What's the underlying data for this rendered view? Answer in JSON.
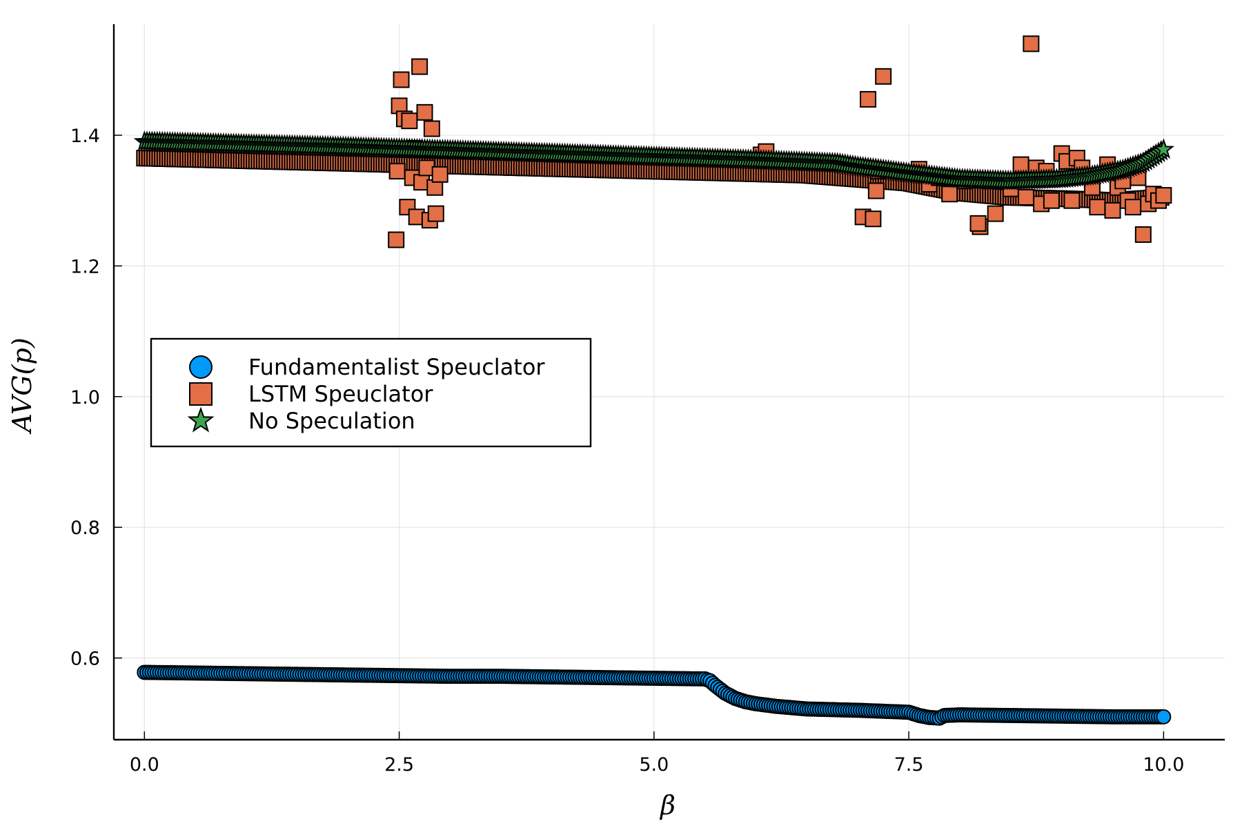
{
  "chart_data": {
    "type": "scatter",
    "xlabel": "β",
    "ylabel": "AVG(p)",
    "xlim": [
      -0.3,
      10.6
    ],
    "ylim": [
      0.475,
      1.57
    ],
    "xticks": [
      0.0,
      2.5,
      5.0,
      7.5,
      10.0
    ],
    "xtick_labels": [
      "0.0",
      "2.5",
      "5.0",
      "7.5",
      "10.0"
    ],
    "yticks": [
      0.6,
      0.8,
      1.0,
      1.2,
      1.4
    ],
    "ytick_labels": [
      "0.6",
      "0.8",
      "1.0",
      "1.2",
      "1.4"
    ],
    "grid": true,
    "legend_position": "center-left",
    "series": [
      {
        "name": "Fundamentalist Speuclator",
        "marker": "circle",
        "color": "#009AFA",
        "points": [
          [
            0.0,
            0.578
          ],
          [
            0.5,
            0.577
          ],
          [
            1.0,
            0.576
          ],
          [
            1.5,
            0.575
          ],
          [
            2.0,
            0.574
          ],
          [
            2.5,
            0.573
          ],
          [
            3.0,
            0.572
          ],
          [
            3.5,
            0.572
          ],
          [
            4.0,
            0.571
          ],
          [
            4.5,
            0.57
          ],
          [
            5.0,
            0.569
          ],
          [
            5.5,
            0.568
          ],
          [
            5.55,
            0.565
          ],
          [
            5.6,
            0.558
          ],
          [
            5.7,
            0.546
          ],
          [
            5.8,
            0.538
          ],
          [
            5.9,
            0.533
          ],
          [
            6.0,
            0.53
          ],
          [
            6.2,
            0.526
          ],
          [
            6.5,
            0.522
          ],
          [
            7.0,
            0.52
          ],
          [
            7.5,
            0.517
          ],
          [
            7.6,
            0.512
          ],
          [
            7.7,
            0.509
          ],
          [
            7.8,
            0.508
          ],
          [
            7.85,
            0.512
          ],
          [
            8.0,
            0.513
          ],
          [
            8.5,
            0.512
          ],
          [
            9.0,
            0.511
          ],
          [
            9.5,
            0.51
          ],
          [
            10.0,
            0.51
          ]
        ]
      },
      {
        "name": "LSTM Speuclator",
        "marker": "square",
        "color": "#E26F46",
        "points": [
          [
            0.0,
            1.365
          ],
          [
            1.0,
            1.361
          ],
          [
            2.0,
            1.357
          ],
          [
            2.5,
            1.355
          ],
          [
            3.0,
            1.353
          ],
          [
            4.0,
            1.349
          ],
          [
            5.0,
            1.345
          ],
          [
            6.0,
            1.341
          ],
          [
            6.5,
            1.339
          ],
          [
            7.0,
            1.333
          ],
          [
            7.5,
            1.327
          ],
          [
            8.0,
            1.312
          ],
          [
            8.5,
            1.305
          ],
          [
            9.0,
            1.303
          ],
          [
            9.5,
            1.3
          ],
          [
            10.0,
            1.305
          ],
          [
            2.48,
            1.345
          ],
          [
            2.5,
            1.445
          ],
          [
            2.52,
            1.485
          ],
          [
            2.55,
            1.425
          ],
          [
            2.58,
            1.29
          ],
          [
            2.6,
            1.422
          ],
          [
            2.47,
            1.24
          ],
          [
            2.63,
            1.335
          ],
          [
            2.65,
            1.38
          ],
          [
            2.67,
            1.275
          ],
          [
            2.7,
            1.505
          ],
          [
            2.72,
            1.328
          ],
          [
            2.75,
            1.435
          ],
          [
            2.77,
            1.35
          ],
          [
            2.8,
            1.27
          ],
          [
            2.82,
            1.41
          ],
          [
            2.85,
            1.32
          ],
          [
            2.86,
            1.28
          ],
          [
            2.9,
            1.34
          ],
          [
            6.05,
            1.37
          ],
          [
            6.1,
            1.375
          ],
          [
            7.05,
            1.275
          ],
          [
            7.1,
            1.455
          ],
          [
            7.15,
            1.272
          ],
          [
            7.2,
            1.345
          ],
          [
            7.25,
            1.49
          ],
          [
            7.18,
            1.315
          ],
          [
            7.6,
            1.348
          ],
          [
            7.7,
            1.325
          ],
          [
            7.8,
            1.335
          ],
          [
            7.9,
            1.31
          ],
          [
            8.05,
            1.33
          ],
          [
            8.2,
            1.26
          ],
          [
            8.18,
            1.265
          ],
          [
            8.3,
            1.33
          ],
          [
            8.35,
            1.28
          ],
          [
            8.5,
            1.318
          ],
          [
            8.6,
            1.355
          ],
          [
            8.65,
            1.305
          ],
          [
            8.7,
            1.54
          ],
          [
            8.75,
            1.35
          ],
          [
            8.8,
            1.295
          ],
          [
            8.85,
            1.345
          ],
          [
            8.9,
            1.3
          ],
          [
            9.0,
            1.372
          ],
          [
            9.05,
            1.36
          ],
          [
            9.1,
            1.3
          ],
          [
            9.15,
            1.365
          ],
          [
            9.2,
            1.35
          ],
          [
            9.3,
            1.32
          ],
          [
            9.35,
            1.29
          ],
          [
            9.45,
            1.355
          ],
          [
            9.5,
            1.285
          ],
          [
            9.55,
            1.32
          ],
          [
            9.6,
            1.33
          ],
          [
            9.65,
            1.3
          ],
          [
            9.7,
            1.29
          ],
          [
            9.75,
            1.335
          ],
          [
            9.8,
            1.248
          ],
          [
            9.85,
            1.295
          ],
          [
            9.9,
            1.31
          ],
          [
            9.95,
            1.3
          ],
          [
            10.0,
            1.308
          ]
        ]
      },
      {
        "name": "No Speculation",
        "marker": "star",
        "color": "#3DA44E",
        "points": [
          [
            0.0,
            1.39
          ],
          [
            1.0,
            1.386
          ],
          [
            2.0,
            1.382
          ],
          [
            3.0,
            1.377
          ],
          [
            4.0,
            1.372
          ],
          [
            5.0,
            1.367
          ],
          [
            6.0,
            1.362
          ],
          [
            6.5,
            1.359
          ],
          [
            6.8,
            1.357
          ],
          [
            7.0,
            1.352
          ],
          [
            7.5,
            1.342
          ],
          [
            8.0,
            1.333
          ],
          [
            8.5,
            1.33
          ],
          [
            9.0,
            1.333
          ],
          [
            9.3,
            1.338
          ],
          [
            9.6,
            1.347
          ],
          [
            9.8,
            1.358
          ],
          [
            10.0,
            1.378
          ]
        ]
      }
    ]
  }
}
